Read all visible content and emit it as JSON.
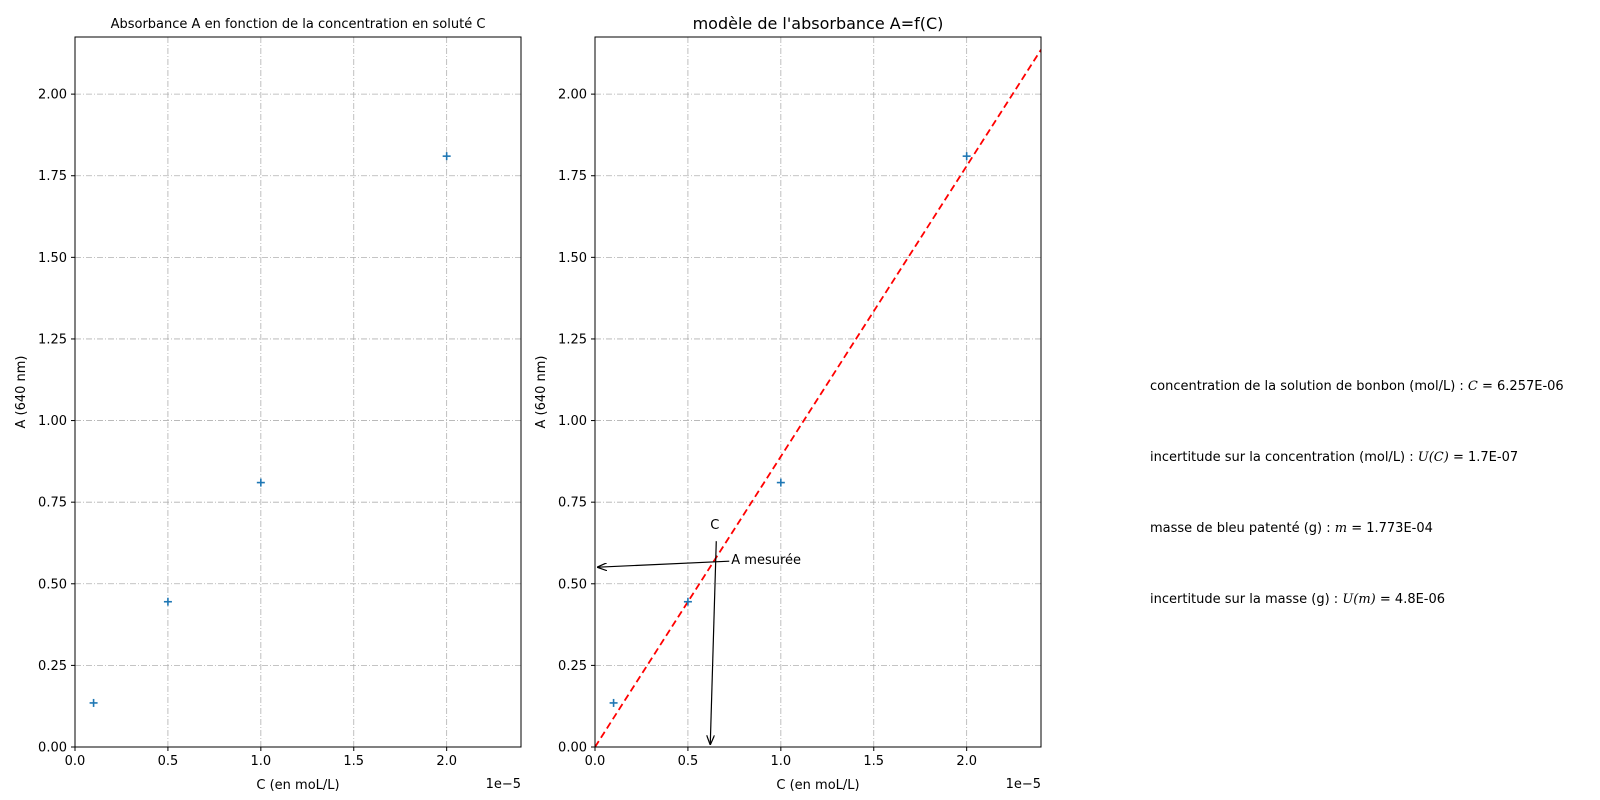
{
  "chart_data": [
    {
      "type": "scatter",
      "title": "Absorbance A en fonction de la concentration en soluté C",
      "xlabel": "C (en moL/L)",
      "ylabel": "A (640 nm)",
      "x_offset_text": "1e−5",
      "xlim": [
        0,
        2.4e-05
      ],
      "ylim": [
        0,
        2.175
      ],
      "xticks": [
        0,
        5e-06,
        1e-05,
        1.5e-05,
        2e-05
      ],
      "xtick_labels": [
        "0.0",
        "0.5",
        "1.0",
        "1.5",
        "2.0"
      ],
      "yticks": [
        0,
        0.25,
        0.5,
        0.75,
        1.0,
        1.25,
        1.5,
        1.75,
        2.0
      ],
      "ytick_labels": [
        "0.00",
        "0.25",
        "0.50",
        "0.75",
        "1.00",
        "1.25",
        "1.50",
        "1.75",
        "2.00"
      ],
      "grid": true,
      "series": [
        {
          "marker": "+",
          "color": "#1f77b4",
          "x": [
            1e-06,
            5e-06,
            1e-05,
            2e-05
          ],
          "y": [
            0.135,
            0.445,
            0.81,
            1.81
          ]
        }
      ]
    },
    {
      "type": "scatter",
      "title": "modèle de l'absorbance A=f(C)",
      "xlabel": "C (en moL/L)",
      "ylabel": "A (640 nm)",
      "x_offset_text": "1e−5",
      "xlim": [
        0,
        2.4e-05
      ],
      "ylim": [
        0,
        2.175
      ],
      "xticks": [
        0,
        5e-06,
        1e-05,
        1.5e-05,
        2e-05
      ],
      "xtick_labels": [
        "0.0",
        "0.5",
        "1.0",
        "1.5",
        "2.0"
      ],
      "yticks": [
        0,
        0.25,
        0.5,
        0.75,
        1.0,
        1.25,
        1.5,
        1.75,
        2.0
      ],
      "ytick_labels": [
        "0.00",
        "0.25",
        "0.50",
        "0.75",
        "1.00",
        "1.25",
        "1.50",
        "1.75",
        "2.00"
      ],
      "grid": true,
      "series": [
        {
          "marker": "+",
          "color": "#1f77b4",
          "x": [
            1e-06,
            5e-06,
            1e-05,
            2e-05
          ],
          "y": [
            0.135,
            0.445,
            0.81,
            1.81
          ]
        }
      ],
      "model_line": {
        "color": "#ff0000",
        "style": "dashed",
        "slope": 89000,
        "intercept": 0
      },
      "annotations": {
        "a_label": "A mesurée",
        "c_label": "C",
        "point": {
          "x": 6.257e-06,
          "y": 0.557
        },
        "a_arrow_end": {
          "x": 0,
          "y": 0.557
        },
        "c_arrow_end": {
          "x": 6.257e-06,
          "y": 0
        }
      }
    }
  ],
  "results": [
    {
      "label": "concentration de la solution de bonbon (mol/L) : ",
      "symbol": "C",
      "value": " = 6.257E-06"
    },
    {
      "label": "incertitude sur la concentration (mol/L) : ",
      "symbol": "U(C)",
      "value": " = 1.7E-07"
    },
    {
      "label": "masse de bleu patenté (g) : ",
      "symbol": "m",
      "value": " = 1.773E-04"
    },
    {
      "label": "incertitude sur la masse (g) : ",
      "symbol": "U(m)",
      "value": " = 4.8E-06"
    }
  ]
}
